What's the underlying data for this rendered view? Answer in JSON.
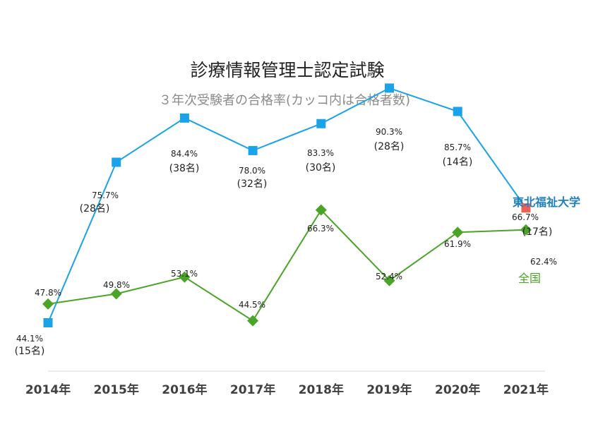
{
  "chart_data": {
    "type": "line",
    "title": "診療情報管理士認定試験",
    "subtitle": "３年次受験者の合格率(カッコ内は合格者数)",
    "categories": [
      "2014年",
      "2015年",
      "2016年",
      "2017年",
      "2018年",
      "2019年",
      "2020年",
      "2021年"
    ],
    "ylim": [
      40,
      95
    ],
    "grid": false,
    "series": [
      {
        "name": "東北福祉大学",
        "color": "#1aa3e8",
        "last_point_color": "#f26052",
        "marker": "square",
        "values": [
          44.1,
          75.7,
          84.4,
          78.0,
          83.3,
          90.3,
          85.7,
          66.7
        ],
        "value_labels": [
          "44.1%",
          "75.7%",
          "84.4%",
          "78.0%",
          "83.3%",
          "90.3%",
          "85.7%",
          "66.7%"
        ],
        "counts": [
          "(15名)",
          "(28名)",
          "(38名)",
          "(32名)",
          "(30名)",
          "(28名)",
          "(14名)",
          "(17名)"
        ]
      },
      {
        "name": "全国",
        "color": "#4aa428",
        "marker": "diamond",
        "values": [
          47.8,
          49.8,
          53.1,
          44.5,
          66.3,
          52.4,
          61.9,
          62.4
        ],
        "value_labels": [
          "47.8%",
          "49.8%",
          "53.1%",
          "44.5%",
          "66.3%",
          "52.4%",
          "61.9%",
          "62.4%"
        ]
      }
    ]
  }
}
